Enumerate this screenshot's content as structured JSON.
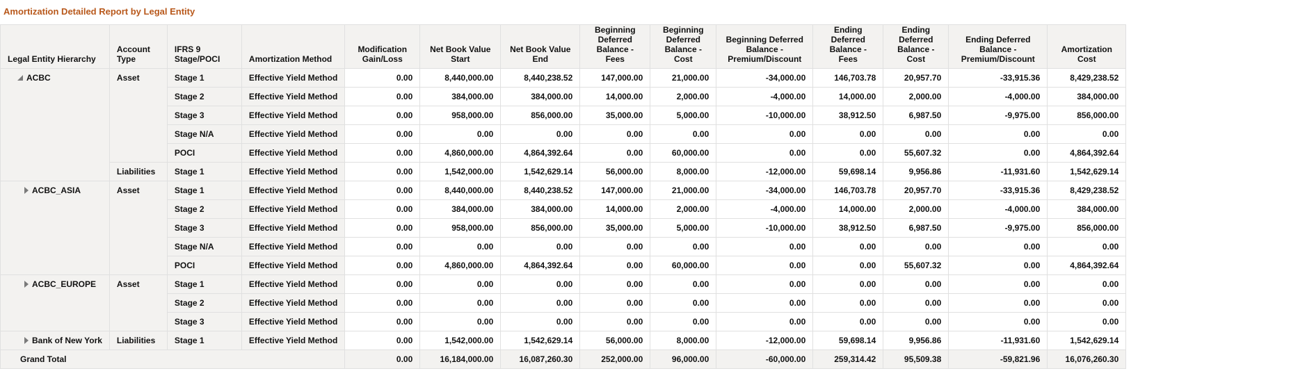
{
  "report": {
    "title": "Amortization Detailed Report by Legal Entity"
  },
  "columns": [
    "Legal Entity Hierarchy",
    "Account Type",
    "IFRS 9 Stage/POCI",
    "Amortization Method",
    "Modification Gain/Loss",
    "Net Book Value Start",
    "Net Book Value End",
    "Beginning Deferred Balance - Fees",
    "Beginning Deferred Balance - Cost",
    "Beginning Deferred Balance - Premium/Discount",
    "Ending Deferred Balance - Fees",
    "Ending Deferred Balance - Cost",
    "Ending Deferred Balance - Premium/Discount",
    "Amortization Cost"
  ],
  "entities": {
    "acbc": {
      "name": "ACBC",
      "state": "expanded"
    },
    "acbc_asia": {
      "name": "ACBC_ASIA",
      "state": "collapsed"
    },
    "acbc_europe": {
      "name": "ACBC_EUROPE",
      "state": "collapsed"
    },
    "bank_of_new_york": {
      "name": "Bank of New York",
      "state": "collapsed"
    }
  },
  "account_types": {
    "asset": "Asset",
    "liabilities": "Liabilities"
  },
  "rows": [
    {
      "entity": "ACBC",
      "account_type": "Asset",
      "stage": "Stage 1",
      "method": "Effective Yield Method",
      "values": [
        "0.00",
        "8,440,000.00",
        "8,440,238.52",
        "147,000.00",
        "21,000.00",
        "-34,000.00",
        "146,703.78",
        "20,957.70",
        "-33,915.36",
        "8,429,238.52"
      ]
    },
    {
      "entity": "ACBC",
      "account_type": "Asset",
      "stage": "Stage 2",
      "method": "Effective Yield Method",
      "values": [
        "0.00",
        "384,000.00",
        "384,000.00",
        "14,000.00",
        "2,000.00",
        "-4,000.00",
        "14,000.00",
        "2,000.00",
        "-4,000.00",
        "384,000.00"
      ]
    },
    {
      "entity": "ACBC",
      "account_type": "Asset",
      "stage": "Stage 3",
      "method": "Effective Yield Method",
      "values": [
        "0.00",
        "958,000.00",
        "856,000.00",
        "35,000.00",
        "5,000.00",
        "-10,000.00",
        "38,912.50",
        "6,987.50",
        "-9,975.00",
        "856,000.00"
      ]
    },
    {
      "entity": "ACBC",
      "account_type": "Asset",
      "stage": "Stage N/A",
      "method": "Effective Yield Method",
      "values": [
        "0.00",
        "0.00",
        "0.00",
        "0.00",
        "0.00",
        "0.00",
        "0.00",
        "0.00",
        "0.00",
        "0.00"
      ]
    },
    {
      "entity": "ACBC",
      "account_type": "Asset",
      "stage": "POCI",
      "method": "Effective Yield Method",
      "values": [
        "0.00",
        "4,860,000.00",
        "4,864,392.64",
        "0.00",
        "60,000.00",
        "0.00",
        "0.00",
        "55,607.32",
        "0.00",
        "4,864,392.64"
      ]
    },
    {
      "entity": "ACBC",
      "account_type": "Liabilities",
      "stage": "Stage 1",
      "method": "Effective Yield Method",
      "values": [
        "0.00",
        "1,542,000.00",
        "1,542,629.14",
        "56,000.00",
        "8,000.00",
        "-12,000.00",
        "59,698.14",
        "9,956.86",
        "-11,931.60",
        "1,542,629.14"
      ]
    },
    {
      "entity": "ACBC_ASIA",
      "account_type": "Asset",
      "stage": "Stage 1",
      "method": "Effective Yield Method",
      "values": [
        "0.00",
        "8,440,000.00",
        "8,440,238.52",
        "147,000.00",
        "21,000.00",
        "-34,000.00",
        "146,703.78",
        "20,957.70",
        "-33,915.36",
        "8,429,238.52"
      ]
    },
    {
      "entity": "ACBC_ASIA",
      "account_type": "Asset",
      "stage": "Stage 2",
      "method": "Effective Yield Method",
      "values": [
        "0.00",
        "384,000.00",
        "384,000.00",
        "14,000.00",
        "2,000.00",
        "-4,000.00",
        "14,000.00",
        "2,000.00",
        "-4,000.00",
        "384,000.00"
      ]
    },
    {
      "entity": "ACBC_ASIA",
      "account_type": "Asset",
      "stage": "Stage 3",
      "method": "Effective Yield Method",
      "values": [
        "0.00",
        "958,000.00",
        "856,000.00",
        "35,000.00",
        "5,000.00",
        "-10,000.00",
        "38,912.50",
        "6,987.50",
        "-9,975.00",
        "856,000.00"
      ]
    },
    {
      "entity": "ACBC_ASIA",
      "account_type": "Asset",
      "stage": "Stage N/A",
      "method": "Effective Yield Method",
      "values": [
        "0.00",
        "0.00",
        "0.00",
        "0.00",
        "0.00",
        "0.00",
        "0.00",
        "0.00",
        "0.00",
        "0.00"
      ]
    },
    {
      "entity": "ACBC_ASIA",
      "account_type": "Asset",
      "stage": "POCI",
      "method": "Effective Yield Method",
      "values": [
        "0.00",
        "4,860,000.00",
        "4,864,392.64",
        "0.00",
        "60,000.00",
        "0.00",
        "0.00",
        "55,607.32",
        "0.00",
        "4,864,392.64"
      ]
    },
    {
      "entity": "ACBC_EUROPE",
      "account_type": "Asset",
      "stage": "Stage 1",
      "method": "Effective Yield Method",
      "values": [
        "0.00",
        "0.00",
        "0.00",
        "0.00",
        "0.00",
        "0.00",
        "0.00",
        "0.00",
        "0.00",
        "0.00"
      ]
    },
    {
      "entity": "ACBC_EUROPE",
      "account_type": "Asset",
      "stage": "Stage 2",
      "method": "Effective Yield Method",
      "values": [
        "0.00",
        "0.00",
        "0.00",
        "0.00",
        "0.00",
        "0.00",
        "0.00",
        "0.00",
        "0.00",
        "0.00"
      ]
    },
    {
      "entity": "ACBC_EUROPE",
      "account_type": "Asset",
      "stage": "Stage 3",
      "method": "Effective Yield Method",
      "values": [
        "0.00",
        "0.00",
        "0.00",
        "0.00",
        "0.00",
        "0.00",
        "0.00",
        "0.00",
        "0.00",
        "0.00"
      ]
    },
    {
      "entity": "Bank of New York",
      "account_type": "Liabilities",
      "stage": "Stage 1",
      "method": "Effective Yield Method",
      "values": [
        "0.00",
        "1,542,000.00",
        "1,542,629.14",
        "56,000.00",
        "8,000.00",
        "-12,000.00",
        "59,698.14",
        "9,956.86",
        "-11,931.60",
        "1,542,629.14"
      ]
    }
  ],
  "grand_total": {
    "label": "Grand Total",
    "values": [
      "0.00",
      "16,184,000.00",
      "16,087,260.30",
      "252,000.00",
      "96,000.00",
      "-60,000.00",
      "259,314.42",
      "95,509.38",
      "-59,821.96",
      "16,076,260.30"
    ]
  },
  "colors": {
    "title": "#b8581b",
    "header_bg": "#f3f2f0",
    "border": "#e0e0e0",
    "cell_bg": "#ffffff",
    "expander": "#7a7a7a"
  }
}
